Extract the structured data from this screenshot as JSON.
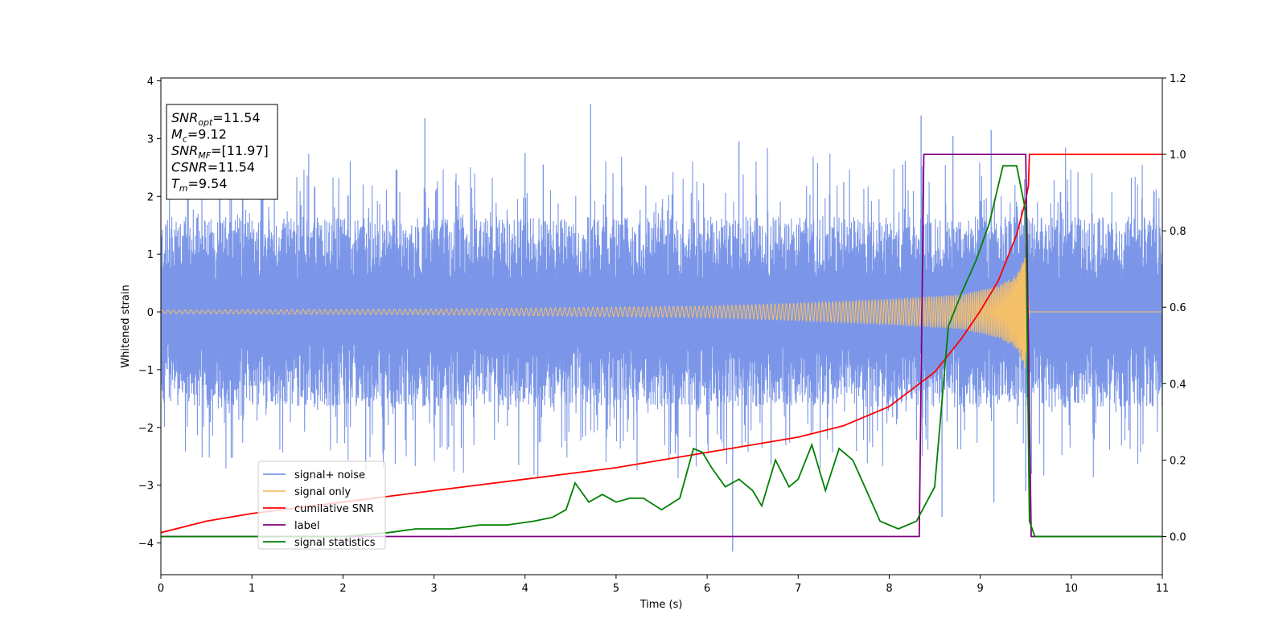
{
  "chart_data": {
    "type": "line",
    "xlabel": "Time (s)",
    "ylabel": "Whitened strain",
    "xlim": [
      0,
      11
    ],
    "ylim_left": [
      -4.55,
      4.05
    ],
    "ylim_right": [
      -0.1,
      1.2
    ],
    "x_ticks": [
      0,
      1,
      2,
      3,
      4,
      5,
      6,
      7,
      8,
      9,
      10,
      11
    ],
    "y_ticks_left": [
      -4,
      -3,
      -2,
      -1,
      0,
      1,
      2,
      3,
      4
    ],
    "y_ticks_right": [
      0.0,
      0.2,
      0.4,
      0.6,
      0.8,
      1.0,
      1.2
    ],
    "x_tick_labels": [
      "0",
      "1",
      "2",
      "3",
      "4",
      "5",
      "6",
      "7",
      "8",
      "9",
      "10",
      "11"
    ],
    "y_tick_labels_left": [
      "−4",
      "−3",
      "−2",
      "−1",
      "0",
      "1",
      "2",
      "3",
      "4"
    ],
    "y_tick_labels_right": [
      "0.0",
      "0.2",
      "0.4",
      "0.6",
      "0.8",
      "1.0",
      "1.2"
    ],
    "legend_position": "lower-left",
    "series": [
      {
        "name": "signal+ noise",
        "axis": "left",
        "color": "#7b96e8",
        "style": "noise band",
        "envelope": [
          -1.5,
          1.5
        ],
        "extreme_peaks": [
          [
            0.3,
            2.9
          ],
          [
            1.1,
            2.6
          ],
          [
            2.9,
            3.35
          ],
          [
            4.0,
            2.75
          ],
          [
            4.2,
            2.55
          ],
          [
            4.72,
            3.6
          ],
          [
            6.35,
            2.95
          ],
          [
            7.5,
            2.25
          ],
          [
            8.15,
            2.55
          ],
          [
            8.35,
            3.4
          ],
          [
            8.7,
            3.05
          ],
          [
            9.12,
            3.15
          ],
          [
            2.25,
            -2.75
          ],
          [
            3.3,
            -2.35
          ],
          [
            6.28,
            -4.15
          ],
          [
            8.58,
            -3.55
          ],
          [
            9.15,
            -3.3
          ],
          [
            9.5,
            -3.1
          ]
        ]
      },
      {
        "name": "signal only",
        "axis": "left",
        "color": "#f5c06a",
        "style": "chirp",
        "amplitude": [
          [
            0,
            0.03
          ],
          [
            3,
            0.05
          ],
          [
            6,
            0.1
          ],
          [
            7,
            0.15
          ],
          [
            8,
            0.22
          ],
          [
            8.8,
            0.3
          ],
          [
            9.2,
            0.45
          ],
          [
            9.4,
            0.65
          ],
          [
            9.5,
            1.0
          ],
          [
            9.54,
            0.0
          ],
          [
            11,
            0.0
          ]
        ]
      },
      {
        "name": "cumilative SNR",
        "axis": "right",
        "color": "#ff0000",
        "x": [
          0,
          0.5,
          1,
          2,
          3,
          4,
          5,
          6,
          7,
          7.5,
          8,
          8.5,
          8.8,
          9.0,
          9.2,
          9.4,
          9.5,
          9.53,
          9.54,
          11
        ],
        "y": [
          0.01,
          0.04,
          0.06,
          0.09,
          0.12,
          0.15,
          0.18,
          0.22,
          0.26,
          0.29,
          0.34,
          0.43,
          0.52,
          0.59,
          0.67,
          0.79,
          0.88,
          0.92,
          1.0,
          1.0
        ]
      },
      {
        "name": "label",
        "axis": "right",
        "color": "#800080",
        "x": [
          0,
          8.33,
          8.38,
          9.5,
          9.56,
          11
        ],
        "y": [
          0.0,
          0.0,
          1.0,
          1.0,
          0.0,
          0.0
        ]
      },
      {
        "name": "signal statistics",
        "axis": "right",
        "color": "#008000",
        "x": [
          0,
          1,
          2,
          2.5,
          2.8,
          3.2,
          3.5,
          3.8,
          4.1,
          4.3,
          4.45,
          4.55,
          4.7,
          4.85,
          5.0,
          5.15,
          5.3,
          5.5,
          5.7,
          5.85,
          5.95,
          6.05,
          6.2,
          6.35,
          6.5,
          6.6,
          6.75,
          6.9,
          7.0,
          7.15,
          7.3,
          7.45,
          7.6,
          7.75,
          7.9,
          8.1,
          8.3,
          8.5,
          8.65,
          8.8,
          8.95,
          9.1,
          9.25,
          9.4,
          9.5,
          9.54,
          9.6,
          11
        ],
        "y": [
          0.0,
          0.0,
          0.0,
          0.01,
          0.02,
          0.02,
          0.03,
          0.03,
          0.04,
          0.05,
          0.07,
          0.14,
          0.09,
          0.11,
          0.09,
          0.1,
          0.1,
          0.07,
          0.1,
          0.23,
          0.22,
          0.18,
          0.13,
          0.15,
          0.12,
          0.08,
          0.2,
          0.13,
          0.15,
          0.24,
          0.12,
          0.23,
          0.2,
          0.12,
          0.04,
          0.02,
          0.04,
          0.13,
          0.55,
          0.64,
          0.72,
          0.82,
          0.97,
          0.97,
          0.85,
          0.04,
          0.0,
          0.0
        ]
      }
    ],
    "info_box": {
      "lines": [
        {
          "main": "SNR",
          "sub": "opt",
          "rest": "=11.54"
        },
        {
          "main": "M",
          "sub": "c",
          "rest": "=9.12"
        },
        {
          "main": "SNR",
          "sub": "MF",
          "rest": "=[11.97]"
        },
        {
          "main": "CSNR",
          "sub": "",
          "rest": "=11.54"
        },
        {
          "main": "T",
          "sub": "m",
          "rest": "=9.54"
        }
      ]
    }
  }
}
